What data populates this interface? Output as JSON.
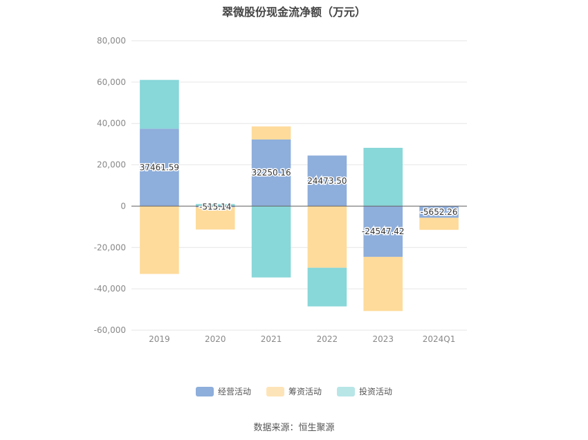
{
  "title": "翠微股份现金流净额（万元）",
  "source": "数据来源：恒生聚源",
  "chart_data": {
    "type": "bar",
    "stacked": true,
    "categories": [
      "2019",
      "2020",
      "2021",
      "2022",
      "2023",
      "2024Q1"
    ],
    "ylim": [
      -60000,
      80000
    ],
    "yticks": [
      -60000,
      -40000,
      -20000,
      0,
      20000,
      40000,
      60000,
      80000
    ],
    "ytick_labels": [
      "-60,000",
      "-40,000",
      "-20,000",
      "0",
      "20,000",
      "40,000",
      "60,000",
      "80,000"
    ],
    "grid": true,
    "legend_position": "bottom",
    "series": [
      {
        "name": "经营活动",
        "color": "#8eaedb",
        "values": [
          37461.59,
          -515.14,
          32250.16,
          24473.5,
          -24547.42,
          -5652.26
        ]
      },
      {
        "name": "筹资活动",
        "color": "#fedb9b",
        "values": [
          -32800,
          -10800,
          6300,
          -29800,
          -26200,
          -5800
        ]
      },
      {
        "name": "投资活动",
        "color": "#88d7d9",
        "values": [
          23600,
          1000,
          -34500,
          -18700,
          28200,
          0
        ]
      }
    ],
    "data_labels": [
      "37461.59",
      "-515.14",
      "32250.16",
      "24473.50",
      "-24547.42",
      "-5652.26"
    ]
  }
}
